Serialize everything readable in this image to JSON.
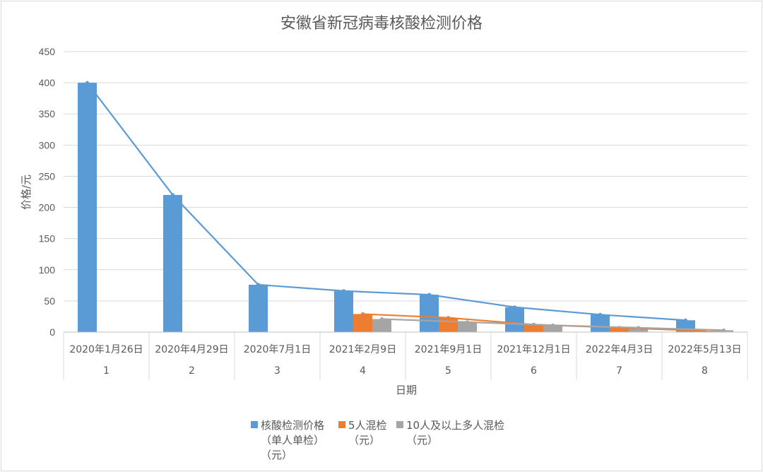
{
  "chart_data": {
    "type": "bar",
    "title": "安徽省新冠病毒核酸检测价格",
    "xlabel": "日期",
    "ylabel": "价格/元",
    "ylim": [
      0,
      450
    ],
    "yticks": [
      0,
      50,
      100,
      150,
      200,
      250,
      300,
      350,
      400,
      450
    ],
    "grid": true,
    "legend_position": "bottom",
    "categories": [
      "2020年1月26日",
      "2020年4月29日",
      "2020年7月1日",
      "2021年2月9日",
      "2021年9月1日",
      "2021年12月1日",
      "2022年4月3日",
      "2022年5月13日"
    ],
    "category_index": [
      "1",
      "2",
      "3",
      "4",
      "5",
      "6",
      "7",
      "8"
    ],
    "series": [
      {
        "name": "核酸检测价格（单人单检）（元）",
        "legend_lines": [
          "核酸检测价格",
          "（单人单检）",
          "（元）"
        ],
        "color": "#5b9bd5",
        "values": [
          400,
          220,
          76,
          66,
          60,
          40,
          28,
          19
        ]
      },
      {
        "name": "5人混检（元）",
        "legend_lines": [
          "5人混检",
          "（元）"
        ],
        "color": "#ed7d31",
        "values": [
          null,
          null,
          null,
          29,
          23,
          12,
          7,
          2
        ]
      },
      {
        "name": "10人及以上多人混检（元）",
        "legend_lines": [
          "10人及以上多人混检",
          "（元）"
        ],
        "color": "#a5a5a5",
        "values": [
          null,
          null,
          null,
          21,
          16,
          11,
          7,
          3
        ]
      }
    ],
    "trend_lines": true
  }
}
